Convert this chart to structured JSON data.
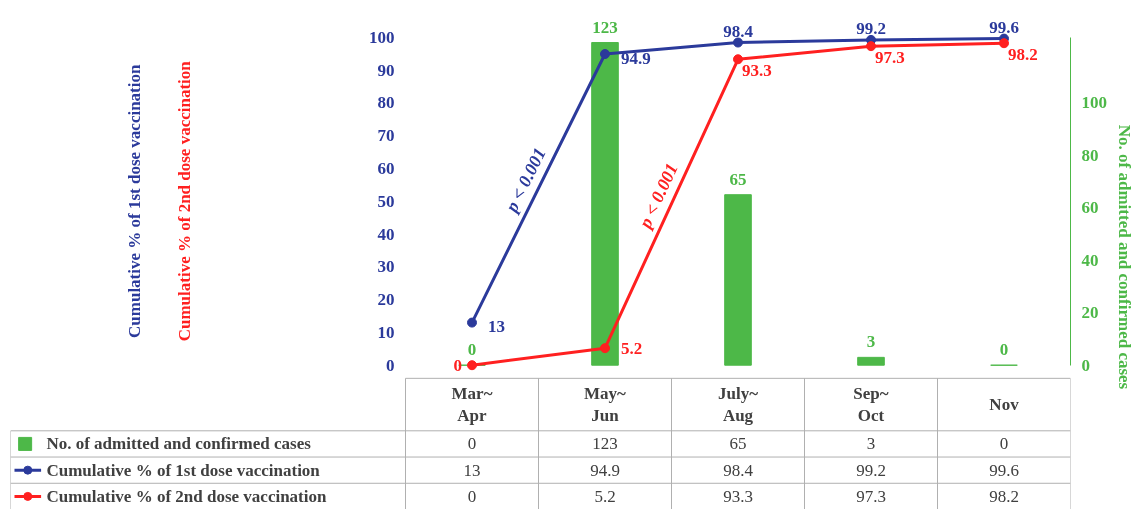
{
  "chart_data": {
    "type": "line",
    "categories": [
      "Mar~\nApr",
      "May~\nJun",
      "July~\nAug",
      "Sep~\nOct",
      "Nov"
    ],
    "y2label": "No. of admitted and confirmed cases",
    "annotations": [
      "Cumulative % of 1st dose vaccination",
      "Cumulative % of 2nd dose vaccination",
      "p < 0.001",
      "p < 0.001",
      "0",
      "123",
      "65",
      "3",
      "0",
      "13",
      "94.9",
      "98.4",
      "99.2",
      "99.6",
      "0",
      "5.2",
      "93.3",
      "97.3",
      "98.2"
    ],
    "series": [
      {
        "name": "No. of admitted and confirmed cases",
        "type": "bar",
        "axis": "y2",
        "color": "#4db848",
        "values": [
          0,
          123,
          65,
          3,
          0
        ],
        "value_labels": [
          "0",
          "123",
          "65",
          "3",
          "0"
        ]
      },
      {
        "name": "Cumulative % of 1st dose vaccination",
        "color": "#2b3a9b",
        "values": [
          13,
          94.9,
          98.4,
          99.2,
          99.6
        ],
        "value_labels": [
          "13",
          "94.9",
          "98.4",
          "99.2",
          "99.6"
        ]
      },
      {
        "name": "Cumulative % of 2nd dose vaccination",
        "color": "#ff2020",
        "values": [
          0,
          5.2,
          93.3,
          97.3,
          98.2
        ],
        "value_labels": [
          "0",
          "5.2",
          "93.3",
          "97.3",
          "98.2"
        ]
      }
    ],
    "ylim": [
      0,
      100
    ],
    "yticks": [
      0,
      10,
      20,
      30,
      40,
      50,
      60,
      70,
      80,
      90,
      100
    ],
    "y2lim": [
      0,
      125
    ],
    "y2ticks": [
      0,
      20,
      40,
      60,
      80,
      100
    ],
    "marker": "circle",
    "line_style": "solid",
    "data_labels": true,
    "legend": "bottom",
    "grid": false
  }
}
